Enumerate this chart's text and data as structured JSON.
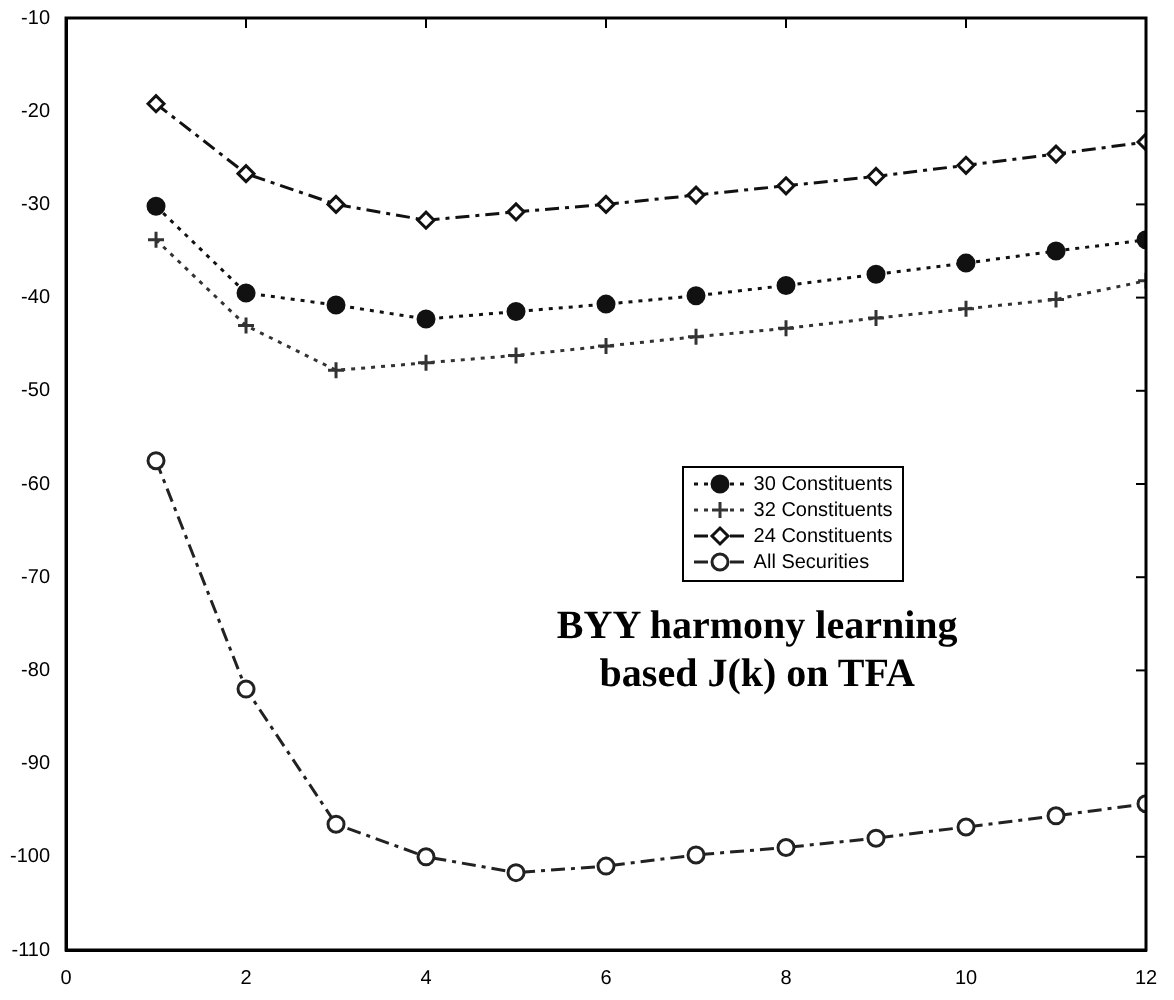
{
  "chart_data": {
    "type": "line",
    "x": [
      1,
      2,
      3,
      4,
      5,
      6,
      7,
      8,
      9,
      10,
      11,
      12
    ],
    "series": [
      {
        "name": "30 Constituents",
        "color": "#111111",
        "marker": "circle",
        "line_style": "dotted",
        "values": [
          -30.2,
          -39.5,
          -40.8,
          -42.3,
          -41.5,
          -40.7,
          -39.8,
          -38.7,
          -37.5,
          -36.3,
          -35,
          -33.8
        ]
      },
      {
        "name": "32 Constituents",
        "color": "#333333",
        "marker": "cross",
        "line_style": "dotted",
        "values": [
          -33.8,
          -43,
          -47.8,
          -47,
          -46.2,
          -45.2,
          -44.2,
          -43.3,
          -42.2,
          -41.2,
          -40.2,
          -38.2
        ]
      },
      {
        "name": "24 Constituents",
        "color": "#111111",
        "marker": "diamond",
        "line_style": "dashed",
        "values": [
          -19.2,
          -26.7,
          -30,
          -31.7,
          -30.8,
          -30,
          -29,
          -28,
          -27,
          -25.8,
          -24.6,
          -23.3
        ]
      },
      {
        "name": "All Securities",
        "color": "#222222",
        "marker": "circle",
        "line_style": "dashed",
        "values": [
          -57.5,
          -82,
          -96.5,
          -100,
          -101.7,
          -101,
          -99.8,
          -99,
          -98,
          -96.8,
          -95.6,
          -94.3
        ]
      }
    ],
    "xlim": [
      0,
      12
    ],
    "xticks": [
      0,
      2,
      4,
      6,
      8,
      10,
      12
    ],
    "ylim": [
      -110,
      -10
    ],
    "yticks": [
      -110,
      -100,
      -90,
      -80,
      -70,
      -60,
      -50,
      -40,
      -30,
      -20,
      -10
    ],
    "legend": "right",
    "grid": false,
    "annotations": [
      "BYY harmony learning based J(k) on TFA"
    ]
  }
}
